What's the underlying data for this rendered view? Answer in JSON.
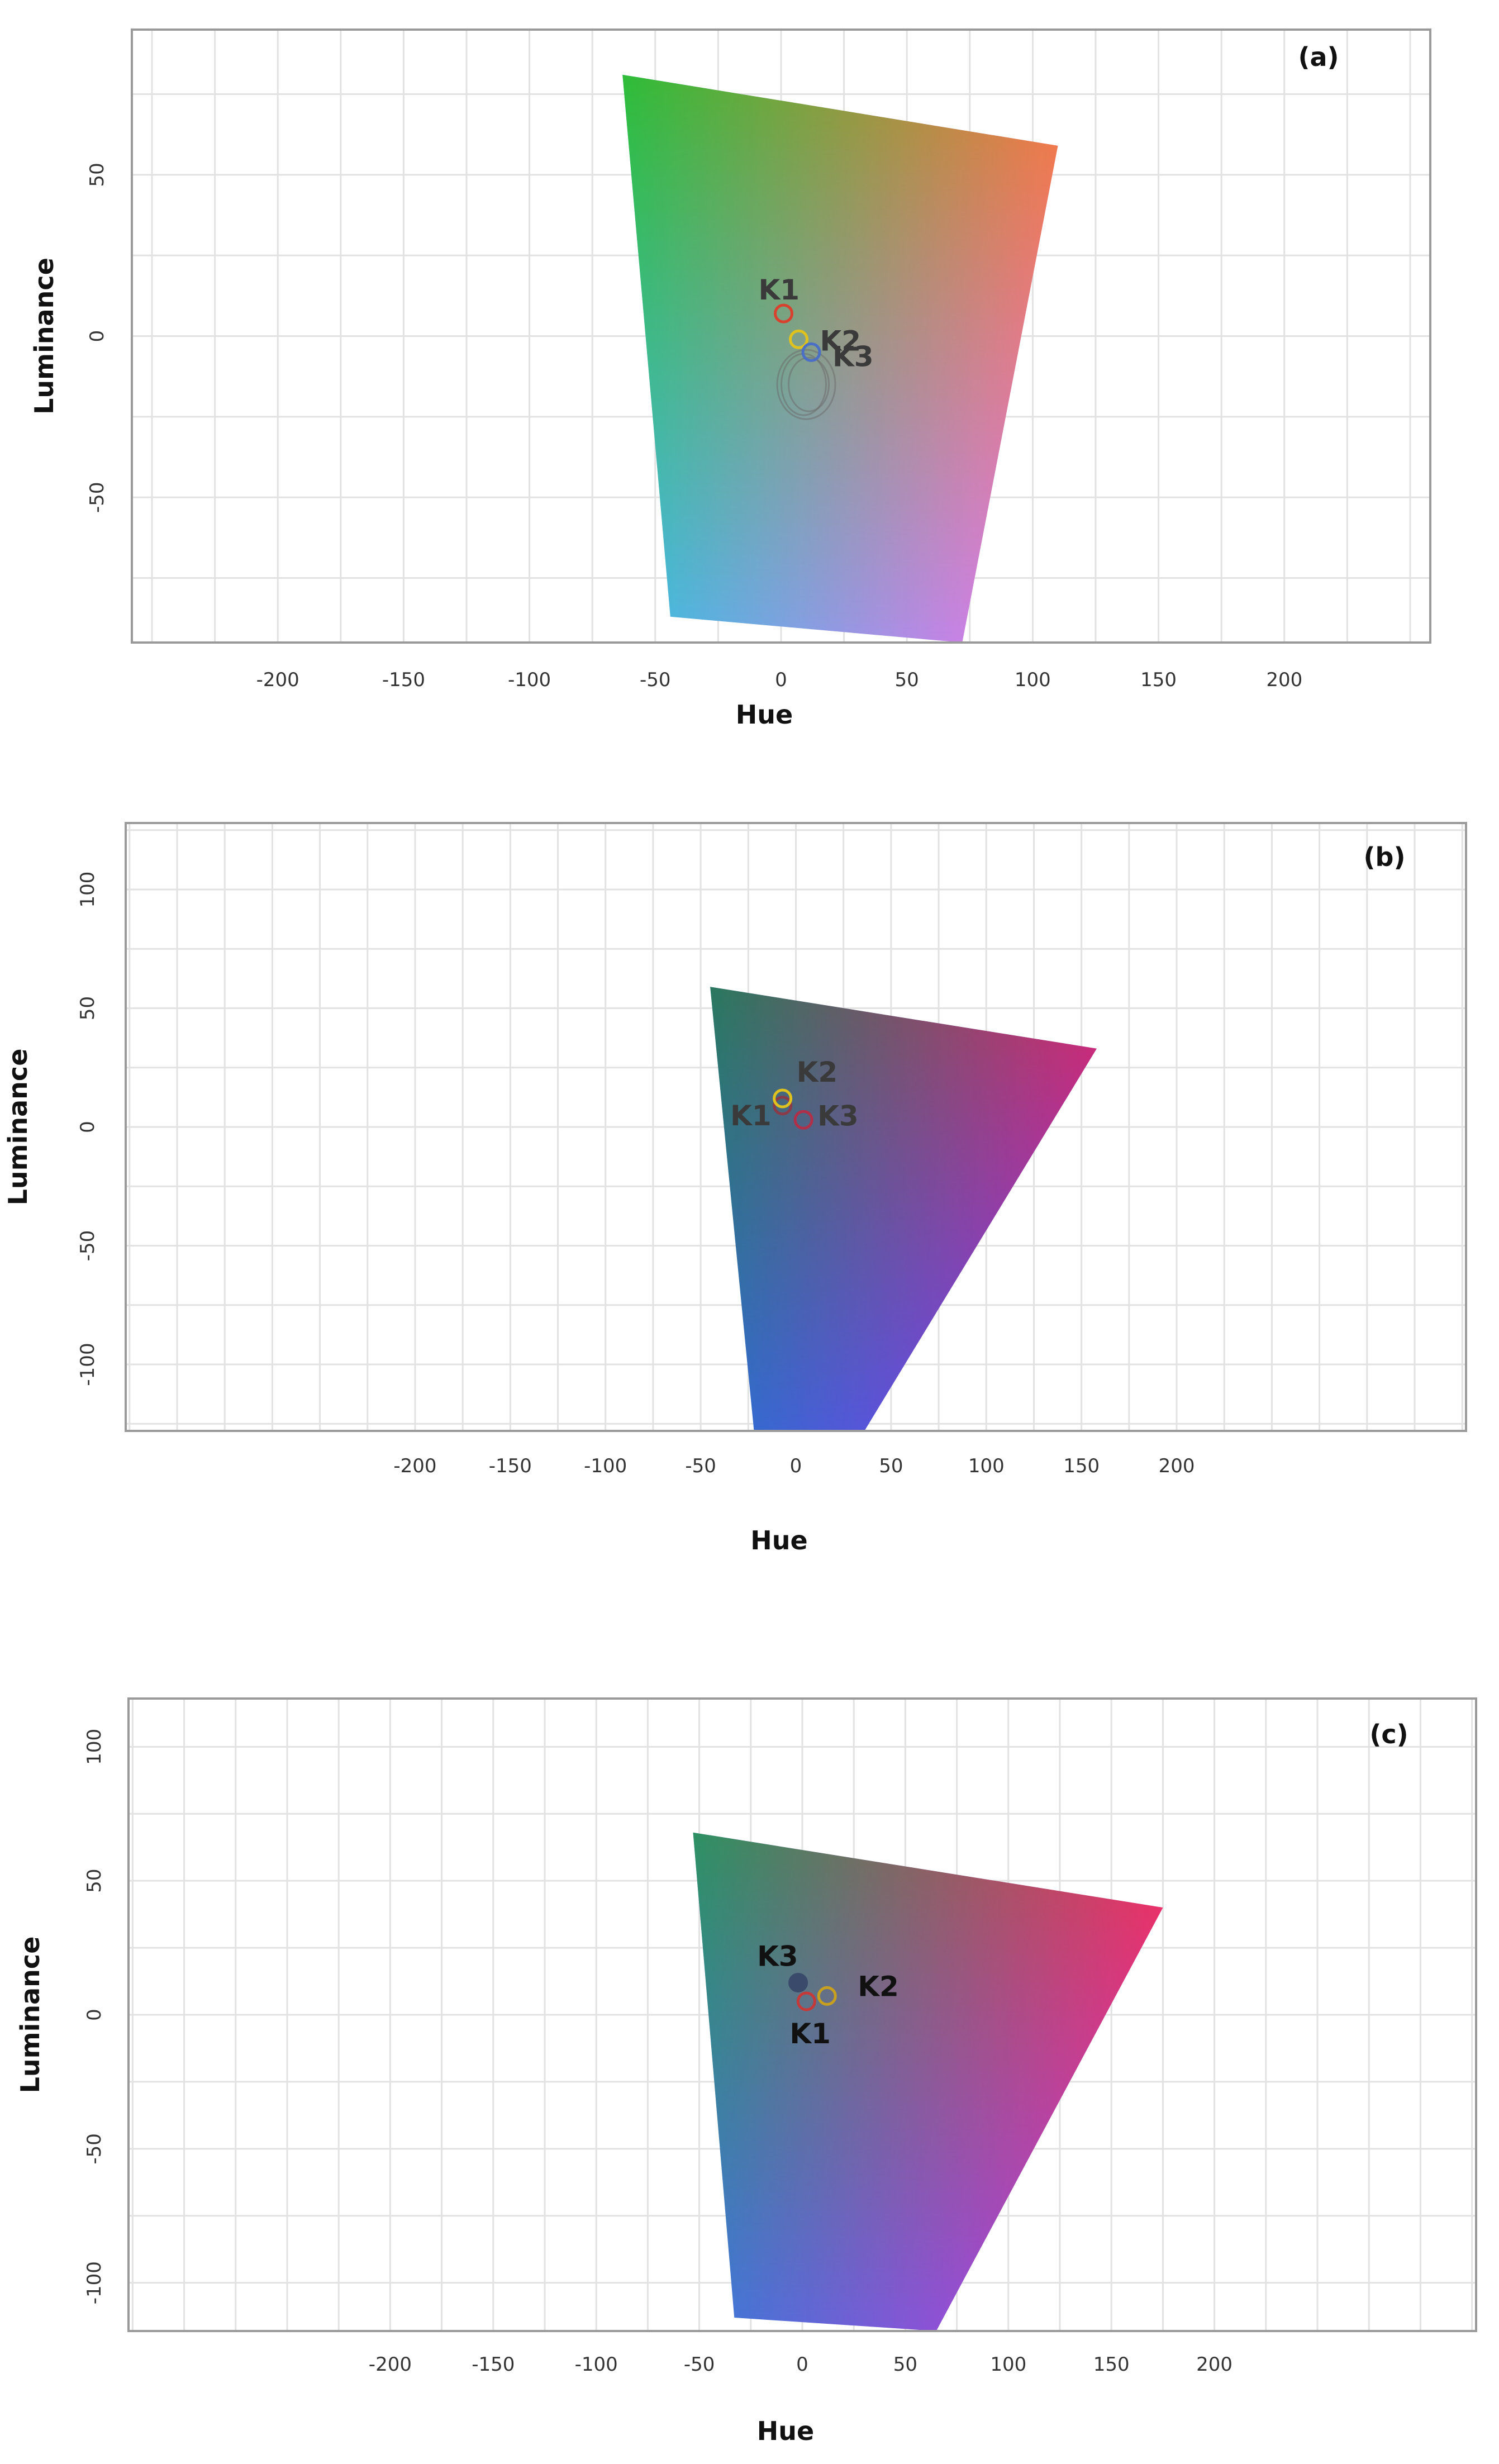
{
  "figure": {
    "panels": [
      "(a)",
      "(b)",
      "(c)"
    ]
  },
  "chart_data": [
    {
      "type": "scatter",
      "panel_label": "(a)",
      "title": "",
      "xlabel": "Hue",
      "ylabel": "Luminance",
      "xlim": [
        -258,
        258
      ],
      "ylim": [
        -95,
        95
      ],
      "xticks": [
        -200,
        -150,
        -100,
        -50,
        0,
        50,
        100,
        150,
        200
      ],
      "yticks": [
        -50,
        0,
        50
      ],
      "grid": true,
      "gamut_polygon": [
        [
          -63,
          81
        ],
        [
          110,
          59
        ],
        [
          72,
          -95
        ],
        [
          -44,
          -87
        ]
      ],
      "gamut_colors": {
        "top_left": "#22c41e",
        "top_right": "#ff7a1e",
        "bottom_right": "#ff70f4",
        "bottom_left": "#30c8f2"
      },
      "clusters": [
        {
          "name": "K1",
          "x": 1,
          "y": 7,
          "color": "#d9412f",
          "filled": false
        },
        {
          "name": "K2",
          "x": 7,
          "y": -1,
          "color": "#e0c21f",
          "filled": false
        },
        {
          "name": "K3",
          "x": 12,
          "y": -5,
          "color": "#4a6fc4",
          "filled": false
        }
      ]
    },
    {
      "type": "scatter",
      "panel_label": "(b)",
      "title": "",
      "xlabel": "Hue",
      "ylabel": "Luminance",
      "xlim": [
        -352,
        352
      ],
      "ylim": [
        -128,
        128
      ],
      "xticks": [
        -200,
        -150,
        -100,
        -50,
        0,
        50,
        100,
        150,
        200
      ],
      "yticks": [
        -100,
        -50,
        0,
        50,
        100
      ],
      "grid": true,
      "gamut_polygon": [
        [
          -45,
          59
        ],
        [
          158,
          33
        ],
        [
          36,
          -128
        ],
        [
          -22,
          -128
        ]
      ],
      "gamut_colors": {
        "top_left": "#1f7a2c",
        "top_right": "#f0202a",
        "bottom_right": "#a020ff",
        "bottom_left": "#1e6fd6"
      },
      "clusters": [
        {
          "name": "K1",
          "x": -7,
          "y": 9,
          "color": "#8a3b4a",
          "filled": false
        },
        {
          "name": "K2",
          "x": -7,
          "y": 12,
          "color": "#e0c21f",
          "filled": false
        },
        {
          "name": "K3",
          "x": 4,
          "y": 3,
          "color": "#b0304a",
          "filled": false
        }
      ]
    },
    {
      "type": "scatter",
      "panel_label": "(c)",
      "title": "",
      "xlabel": "Hue",
      "ylabel": "Luminance",
      "xlim": [
        -327,
        327
      ],
      "ylim": [
        -118,
        118
      ],
      "xticks": [
        -200,
        -150,
        -100,
        -50,
        0,
        50,
        100,
        150,
        200
      ],
      "yticks": [
        -100,
        -50,
        0,
        50,
        100
      ],
      "grid": true,
      "gamut_polygon": [
        [
          -53,
          68
        ],
        [
          175,
          40
        ],
        [
          65,
          -118
        ],
        [
          -33,
          -113
        ]
      ],
      "gamut_colors": {
        "top_left": "#1f9a3a",
        "top_right": "#ff2a2a",
        "bottom_right": "#e820e0",
        "bottom_left": "#2f7ae6"
      },
      "clusters": [
        {
          "name": "K1",
          "x": 2,
          "y": 5,
          "color": "#c43a3a",
          "filled": false
        },
        {
          "name": "K2",
          "x": 12,
          "y": 7,
          "color": "#c8a020",
          "filled": false
        },
        {
          "name": "K3",
          "x": -2,
          "y": 12,
          "color": "#3a4a6a",
          "filled": true
        }
      ]
    }
  ]
}
